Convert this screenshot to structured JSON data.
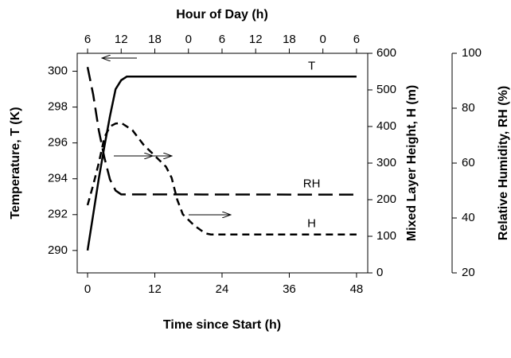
{
  "chart_data": {
    "type": "line",
    "x_label": "Time since Start (h)",
    "x2_label": "Hour of Day (h)",
    "y_label": "Temperature, T (K)",
    "y2_label": "Mixed Layer Height, H (m)",
    "y3_label": "Relative Humidity, RH (%)",
    "xlim": [
      -1.85,
      50
    ],
    "xticks": [
      0,
      12,
      24,
      36,
      48
    ],
    "x2ticks": [
      {
        "value": 0,
        "label": "6"
      },
      {
        "value": 6,
        "label": "12"
      },
      {
        "value": 12,
        "label": "18"
      },
      {
        "value": 18,
        "label": "0"
      },
      {
        "value": 24,
        "label": "6"
      },
      {
        "value": 30,
        "label": "12"
      },
      {
        "value": 36,
        "label": "18"
      },
      {
        "value": 42,
        "label": "0"
      },
      {
        "value": 48,
        "label": "6"
      }
    ],
    "ylim": [
      288.75,
      301
    ],
    "yticks": [
      290,
      292,
      294,
      296,
      298,
      300
    ],
    "y2lim": [
      0,
      600
    ],
    "y2ticks": [
      0,
      100,
      200,
      300,
      400,
      500,
      600
    ],
    "y3lim": [
      20,
      100
    ],
    "y3ticks": [
      20,
      40,
      60,
      80,
      100
    ],
    "series": [
      {
        "name": "T",
        "color": "#000000",
        "line_style": "solid",
        "axis": "y",
        "x": [
          0,
          1,
          2,
          3,
          4,
          5,
          6,
          7,
          48
        ],
        "values": [
          290,
          292,
          294,
          295.8,
          297.5,
          299,
          299.5,
          299.7,
          299.7
        ]
      },
      {
        "name": "RH",
        "color": "#000000",
        "line_style": "long-dash",
        "axis": "y3",
        "x": [
          0,
          1,
          2,
          3,
          4,
          5,
          6,
          48
        ],
        "values": [
          95,
          85,
          72,
          62,
          54,
          50,
          48.6,
          48.5
        ]
      },
      {
        "name": "H",
        "color": "#000000",
        "line_style": "short-dash",
        "axis": "y2",
        "x": [
          0,
          1,
          2,
          3,
          4,
          5,
          6,
          8,
          10,
          12,
          14,
          15,
          16,
          17,
          19,
          21,
          22,
          48
        ],
        "values": [
          185,
          240,
          300,
          370,
          400,
          408,
          410,
          390,
          350,
          320,
          290,
          260,
          200,
          160,
          130,
          108,
          105,
          105
        ]
      }
    ]
  }
}
